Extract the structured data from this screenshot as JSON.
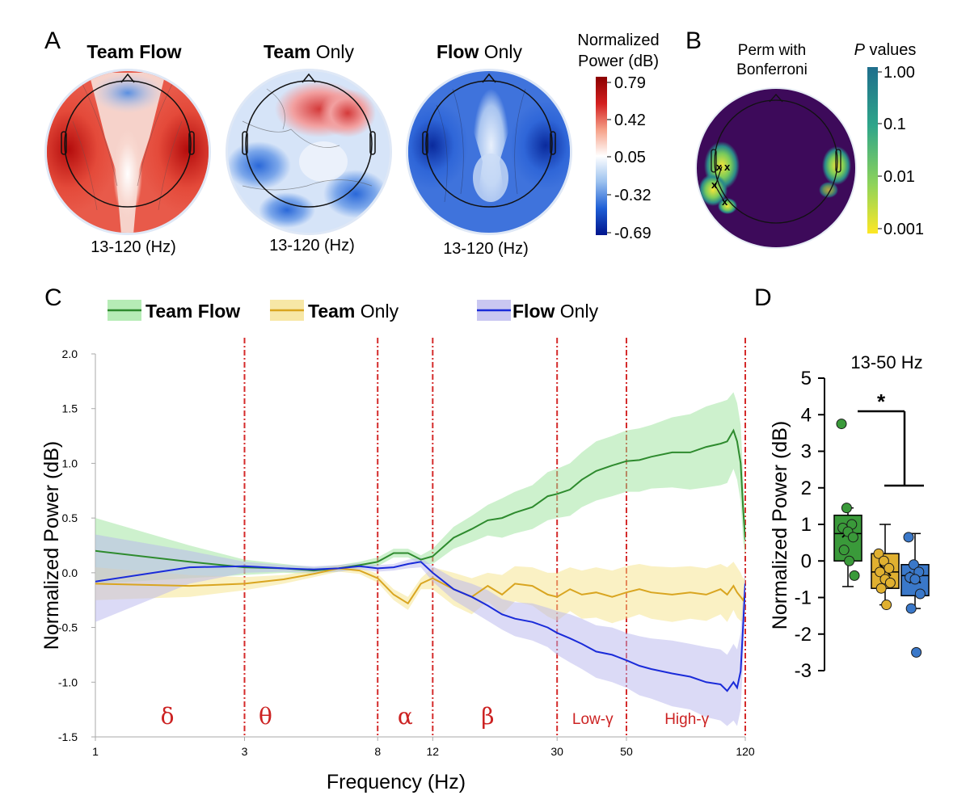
{
  "panels": {
    "a_label": "A",
    "b_label": "B",
    "c_label": "C",
    "d_label": "D"
  },
  "topomaps": {
    "maps": [
      {
        "title_bold": "Team Flow",
        "title_rest": "",
        "range": "13-120 (Hz)"
      },
      {
        "title_bold": "Team",
        "title_rest": " Only",
        "range": "13-120 (Hz)"
      },
      {
        "title_bold": "Flow",
        "title_rest": " Only",
        "range": "13-120 (Hz)"
      }
    ],
    "colorbar": {
      "title_line1": "Normalized",
      "title_line2": "Power (dB)",
      "ticks": [
        "0.79",
        "0.42",
        "0.05",
        "-0.32",
        "-0.69"
      ],
      "colors": [
        "#8b0000",
        "#e02020",
        "#f6a48c",
        "#ffffff",
        "#9ec3ef",
        "#1f5fd6",
        "#00148c"
      ]
    }
  },
  "perm": {
    "title_line1": "Perm with",
    "title_line2": "Bonferroni",
    "marker": "x",
    "bg_color": "#3d0a5a",
    "colorbar": {
      "title_italic": "P",
      "title_rest": " values",
      "ticks": [
        "1.00",
        "0.1",
        "0.01",
        "0.001"
      ],
      "colors": [
        "#1f6e8c",
        "#2ea58a",
        "#8dd35b",
        "#fde725"
      ]
    }
  },
  "chart_data": [
    {
      "type": "line",
      "title": "",
      "xlabel": "Frequency (Hz)",
      "ylabel": "Normalized Power (dB)",
      "xscale": "log",
      "xlim": [
        1,
        120
      ],
      "ylim": [
        -1.5,
        2.0
      ],
      "xticks": [
        1,
        3,
        8,
        12,
        30,
        50,
        120
      ],
      "xtick_labels": [
        "1",
        "3",
        "8",
        "12",
        "30",
        "50",
        "120"
      ],
      "yticks": [
        -1.5,
        -1.0,
        -0.5,
        0.0,
        0.5,
        1.0,
        1.5,
        2.0
      ],
      "ytick_labels": [
        "-1.5",
        "-1.0",
        "-0.5",
        "0.0",
        "0.5",
        "1.0",
        "1.5",
        "2.0"
      ],
      "legend": [
        {
          "bold": "Team Flow",
          "rest": ""
        },
        {
          "bold": "Team",
          "rest": " Only"
        },
        {
          "bold": "Flow",
          "rest": " Only"
        }
      ],
      "band_boundaries": [
        3,
        8,
        12,
        30,
        50,
        120
      ],
      "band_labels": [
        {
          "text": "δ",
          "x": 1.7
        },
        {
          "text": "θ",
          "x": 3.5
        },
        {
          "text": "α",
          "x": 9.8
        },
        {
          "text": "β",
          "x": 18
        },
        {
          "text": "Low-γ",
          "x": 39
        },
        {
          "text": "High-γ",
          "x": 78
        }
      ],
      "x": [
        1,
        2,
        3,
        4,
        5,
        6,
        7,
        8,
        9,
        10,
        11,
        12,
        14,
        16,
        18,
        20,
        22,
        25,
        28,
        30,
        33,
        36,
        40,
        45,
        50,
        55,
        60,
        70,
        80,
        90,
        100,
        105,
        110,
        113,
        116,
        118,
        120
      ],
      "series": [
        {
          "name": "Team Flow",
          "color": "#2e8b2e",
          "band_color": "#9be39b",
          "values": [
            0.2,
            0.1,
            0.05,
            0.04,
            0.02,
            0.04,
            0.07,
            0.1,
            0.18,
            0.18,
            0.12,
            0.15,
            0.32,
            0.4,
            0.48,
            0.5,
            0.55,
            0.6,
            0.7,
            0.72,
            0.76,
            0.85,
            0.93,
            0.98,
            1.02,
            1.03,
            1.06,
            1.1,
            1.1,
            1.15,
            1.18,
            1.2,
            1.3,
            1.2,
            1.0,
            0.6,
            0.3
          ],
          "upper": [
            0.5,
            0.25,
            0.12,
            0.08,
            0.05,
            0.07,
            0.1,
            0.14,
            0.22,
            0.22,
            0.16,
            0.22,
            0.42,
            0.52,
            0.62,
            0.68,
            0.74,
            0.8,
            0.92,
            0.95,
            1.0,
            1.1,
            1.2,
            1.25,
            1.3,
            1.32,
            1.35,
            1.42,
            1.45,
            1.52,
            1.56,
            1.58,
            1.65,
            1.55,
            1.35,
            0.9,
            0.45
          ],
          "lower": [
            -0.1,
            -0.05,
            -0.02,
            0.0,
            -0.01,
            0.01,
            0.04,
            0.06,
            0.14,
            0.14,
            0.08,
            0.08,
            0.22,
            0.28,
            0.34,
            0.32,
            0.36,
            0.4,
            0.48,
            0.5,
            0.52,
            0.6,
            0.66,
            0.7,
            0.74,
            0.74,
            0.77,
            0.78,
            0.76,
            0.78,
            0.8,
            0.82,
            0.95,
            0.85,
            0.65,
            0.3,
            0.15
          ]
        },
        {
          "name": "Team Only",
          "color": "#d9a520",
          "band_color": "#f5e38a",
          "values": [
            -0.1,
            -0.12,
            -0.1,
            -0.06,
            -0.01,
            0.04,
            0.02,
            -0.05,
            -0.2,
            -0.28,
            -0.1,
            -0.05,
            -0.15,
            -0.22,
            -0.12,
            -0.2,
            -0.1,
            -0.12,
            -0.2,
            -0.22,
            -0.15,
            -0.2,
            -0.18,
            -0.22,
            -0.18,
            -0.15,
            -0.18,
            -0.2,
            -0.18,
            -0.2,
            -0.15,
            -0.2,
            -0.12,
            -0.18,
            -0.22,
            -0.25,
            -0.2
          ],
          "upper": [
            0.05,
            -0.02,
            -0.04,
            -0.02,
            0.02,
            0.07,
            0.05,
            -0.01,
            -0.15,
            -0.22,
            -0.05,
            0.05,
            0.0,
            -0.05,
            0.0,
            -0.02,
            0.06,
            0.05,
            0.0,
            0.0,
            0.05,
            0.02,
            0.05,
            0.02,
            0.06,
            0.08,
            0.06,
            0.05,
            0.06,
            0.04,
            0.08,
            0.05,
            0.1,
            0.05,
            0.0,
            -0.05,
            -0.05
          ],
          "lower": [
            -0.25,
            -0.22,
            -0.16,
            -0.1,
            -0.04,
            0.01,
            -0.01,
            -0.09,
            -0.25,
            -0.34,
            -0.15,
            -0.15,
            -0.3,
            -0.38,
            -0.26,
            -0.38,
            -0.26,
            -0.3,
            -0.4,
            -0.44,
            -0.35,
            -0.42,
            -0.41,
            -0.46,
            -0.42,
            -0.38,
            -0.42,
            -0.45,
            -0.42,
            -0.44,
            -0.38,
            -0.45,
            -0.34,
            -0.41,
            -0.44,
            -0.45,
            -0.35
          ]
        },
        {
          "name": "Flow Only",
          "color": "#1a2bd9",
          "band_color": "#b8b6ee",
          "values": [
            -0.08,
            0.05,
            0.06,
            0.04,
            0.03,
            0.04,
            0.06,
            0.04,
            0.05,
            0.08,
            0.1,
            0.0,
            -0.15,
            -0.22,
            -0.3,
            -0.38,
            -0.42,
            -0.45,
            -0.5,
            -0.55,
            -0.6,
            -0.65,
            -0.72,
            -0.75,
            -0.8,
            -0.85,
            -0.88,
            -0.92,
            -0.95,
            -1.0,
            -1.02,
            -1.08,
            -1.0,
            -1.05,
            -0.9,
            -0.5,
            -0.1
          ],
          "upper": [
            0.35,
            0.2,
            0.1,
            0.07,
            0.06,
            0.07,
            0.09,
            0.07,
            0.08,
            0.12,
            0.14,
            0.06,
            -0.05,
            -0.1,
            -0.16,
            -0.24,
            -0.27,
            -0.28,
            -0.32,
            -0.35,
            -0.38,
            -0.42,
            -0.48,
            -0.5,
            -0.55,
            -0.58,
            -0.6,
            -0.62,
            -0.65,
            -0.68,
            -0.7,
            -0.75,
            -0.65,
            -0.7,
            -0.55,
            -0.2,
            0.05
          ],
          "lower": [
            -0.45,
            -0.1,
            0.0,
            0.01,
            0.0,
            0.01,
            0.03,
            0.01,
            0.02,
            0.04,
            0.05,
            -0.08,
            -0.25,
            -0.35,
            -0.44,
            -0.52,
            -0.58,
            -0.62,
            -0.68,
            -0.75,
            -0.82,
            -0.88,
            -0.96,
            -1.0,
            -1.05,
            -1.12,
            -1.15,
            -1.22,
            -1.25,
            -1.32,
            -1.35,
            -1.4,
            -1.35,
            -1.4,
            -1.25,
            -0.8,
            -0.25
          ]
        }
      ]
    },
    {
      "type": "box",
      "title": "13-50 Hz",
      "xlabel": "",
      "ylabel": "Normalized Power (dB)",
      "ylim": [
        -3,
        5
      ],
      "yticks": [
        -3,
        -2,
        -1,
        0,
        1,
        2,
        3,
        4,
        5
      ],
      "ytick_labels": [
        "-3",
        "-2",
        "-1",
        "0",
        "1",
        "2",
        "3",
        "4",
        "5"
      ],
      "significance": "*",
      "groups": [
        {
          "name": "Team Flow",
          "color": "#3a9a3a",
          "q1": 0.0,
          "median": 0.75,
          "q3": 1.25,
          "whisker_low": -0.7,
          "whisker_high": 1.45,
          "mean": 0.8,
          "points": [
            3.75,
            1.45,
            1.0,
            0.9,
            0.8,
            0.65,
            0.3,
            0.0,
            -0.4
          ]
        },
        {
          "name": "Team Only",
          "color": "#e0b030",
          "q1": -0.75,
          "median": -0.3,
          "q3": 0.2,
          "whisker_low": -1.2,
          "whisker_high": 1.0,
          "mean": -0.25,
          "points": [
            0.2,
            0.0,
            -0.2,
            -0.3,
            -0.5,
            -0.6,
            -0.75,
            -1.2
          ]
        },
        {
          "name": "Flow Only",
          "color": "#3a78c9",
          "q1": -0.95,
          "median": -0.4,
          "q3": -0.1,
          "whisker_low": -1.3,
          "whisker_high": 0.75,
          "mean": -0.45,
          "points": [
            0.65,
            -0.1,
            -0.3,
            -0.45,
            -0.5,
            -0.9,
            -1.3,
            -2.5
          ]
        }
      ]
    }
  ]
}
